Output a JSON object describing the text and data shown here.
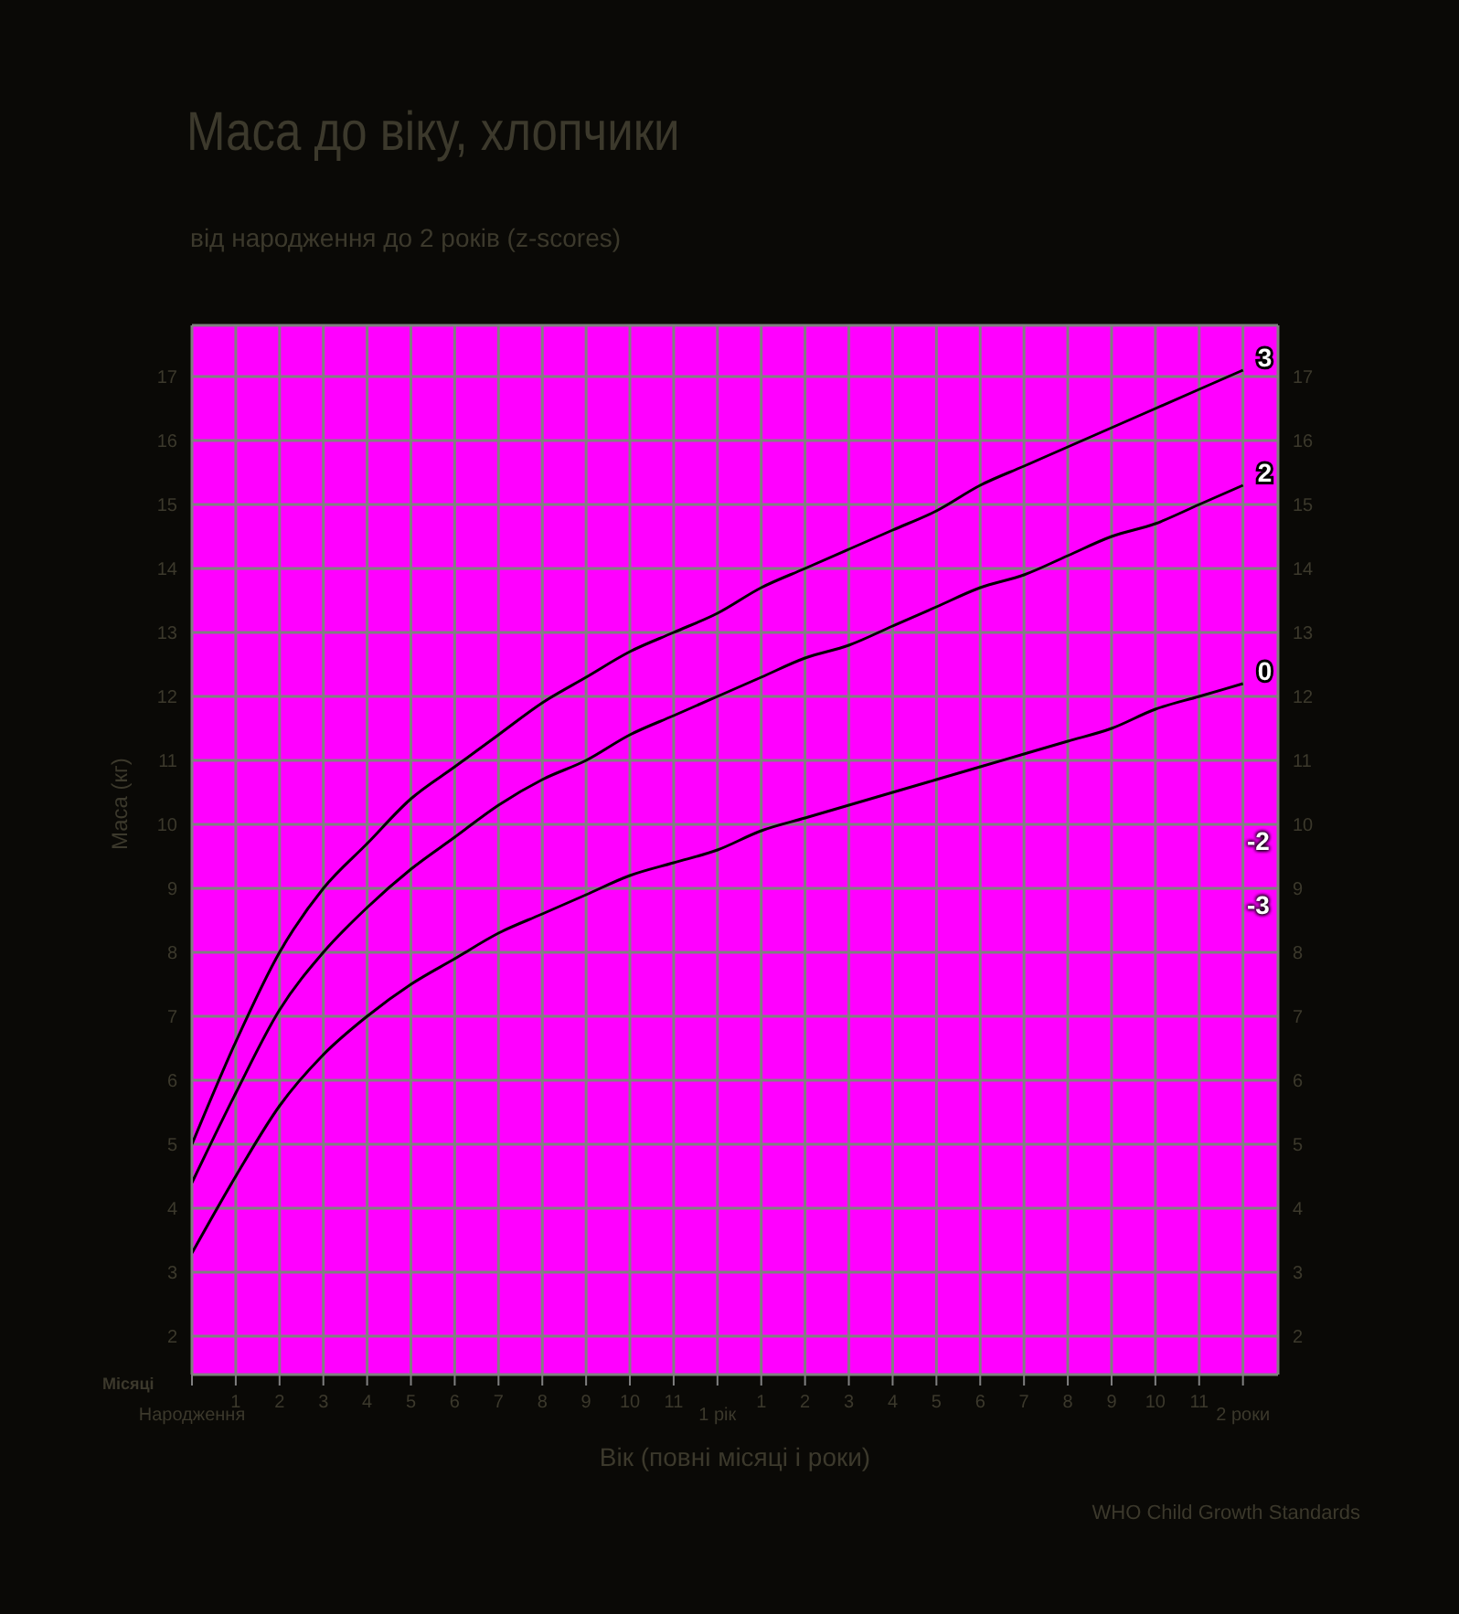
{
  "chart_data": {
    "type": "line",
    "title": "Маса до віку, хлопчики",
    "subtitle": "від народження до 2 років (z-scores)",
    "xlabel": "Вік (повні місяці і роки)",
    "ylabel": "Маса (кг)",
    "categories": [
      null,
      "1",
      "2",
      "3",
      "4",
      "5",
      "6",
      "7",
      "8",
      "9",
      "10",
      "11",
      null,
      "1",
      "2",
      "3",
      "4",
      "5",
      "6",
      "7",
      "8",
      "9",
      "10",
      "11",
      null
    ],
    "series": [
      {
        "name": "3",
        "color": "#000000",
        "values": [
          5.0,
          6.6,
          8.0,
          9.0,
          9.7,
          10.4,
          10.9,
          11.4,
          11.9,
          12.3,
          12.7,
          13.0,
          13.3,
          13.7,
          14.0,
          14.3,
          14.6,
          14.9,
          15.3,
          15.6,
          15.9,
          16.2,
          16.5,
          16.8,
          17.1
        ]
      },
      {
        "name": "2",
        "color": "#000000",
        "values": [
          4.4,
          5.8,
          7.1,
          8.0,
          8.7,
          9.3,
          9.8,
          10.3,
          10.7,
          11.0,
          11.4,
          11.7,
          12.0,
          12.3,
          12.6,
          12.8,
          13.1,
          13.4,
          13.7,
          13.9,
          14.2,
          14.5,
          14.7,
          15.0,
          15.3
        ]
      },
      {
        "name": "0",
        "color": "#000000",
        "values": [
          3.3,
          4.5,
          5.6,
          6.4,
          7.0,
          7.5,
          7.9,
          8.3,
          8.6,
          8.9,
          9.2,
          9.4,
          9.6,
          9.9,
          10.1,
          10.3,
          10.5,
          10.7,
          10.9,
          11.1,
          11.3,
          11.5,
          11.8,
          12.0,
          12.2
        ]
      }
    ],
    "ylim": [
      1.4,
      17.8
    ],
    "yticks": [
      2,
      3,
      4,
      5,
      6,
      7,
      8,
      9,
      10,
      11,
      12,
      13,
      14,
      15,
      16,
      17
    ],
    "y2lim": [
      1.4,
      17.8
    ],
    "y2ticks": [
      2,
      3,
      4,
      5,
      6,
      7,
      8,
      9,
      10,
      11,
      12,
      13,
      14,
      15,
      16,
      17
    ],
    "annotations": [
      "-2",
      "-3",
      "Місяці",
      "WHO Child Growth Standards",
      "Народження",
      "1 рік",
      "2 роки"
    ],
    "grid": true,
    "legend": false,
    "marker": "none",
    "line_style": "solid"
  }
}
